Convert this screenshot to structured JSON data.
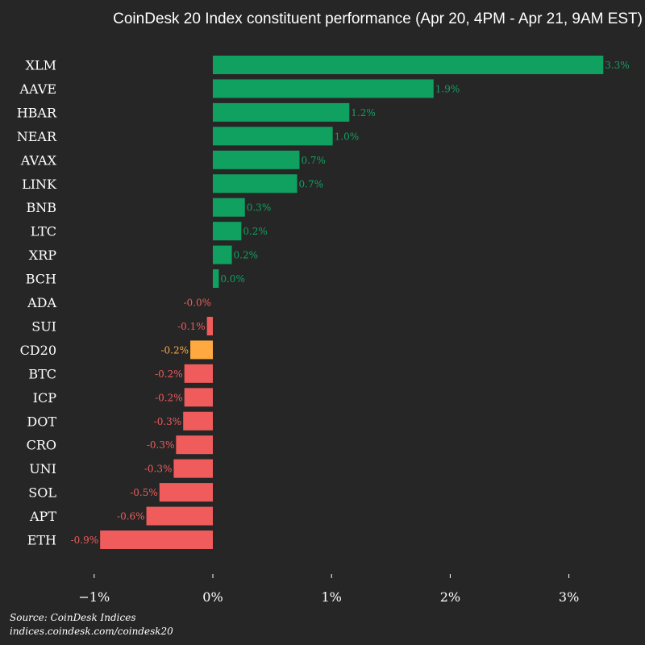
{
  "chart_data": {
    "type": "bar",
    "orientation": "horizontal",
    "title": "CoinDesk 20 Index constituent performance (Apr 20, 4PM - Apr 21, 9AM EST)",
    "xlabel": "",
    "ylabel": "",
    "xlim": [
      -1.2,
      3.6
    ],
    "xticks": [
      -1,
      0,
      1,
      2,
      3
    ],
    "xtick_labels": [
      "−1%",
      "0%",
      "1%",
      "2%",
      "3%"
    ],
    "grid": false,
    "categories": [
      "XLM",
      "AAVE",
      "HBAR",
      "NEAR",
      "AVAX",
      "LINK",
      "BNB",
      "LTC",
      "XRP",
      "BCH",
      "ADA",
      "SUI",
      "CD20",
      "BTC",
      "ICP",
      "DOT",
      "CRO",
      "UNI",
      "SOL",
      "APT",
      "ETH"
    ],
    "values": [
      3.29,
      1.86,
      1.15,
      1.01,
      0.73,
      0.71,
      0.27,
      0.24,
      0.16,
      0.05,
      -0.0,
      -0.05,
      -0.19,
      -0.24,
      -0.24,
      -0.25,
      -0.31,
      -0.33,
      -0.45,
      -0.56,
      -0.95
    ],
    "labels": [
      "3.3%",
      "1.9%",
      "1.2%",
      "1.0%",
      "0.7%",
      "0.7%",
      "0.3%",
      "0.2%",
      "0.2%",
      "0.0%",
      "-0.0%",
      "-0.1%",
      "-0.2%",
      "-0.2%",
      "-0.2%",
      "-0.3%",
      "-0.3%",
      "-0.3%",
      "-0.5%",
      "-0.6%",
      "-0.9%"
    ],
    "highlight_category": "CD20",
    "colors": {
      "positive": "#10a161",
      "negative": "#f05c5c",
      "highlight": "#ffa940",
      "text": "#ffffff",
      "background": "#262626"
    }
  },
  "footer": {
    "source": "Source: CoinDesk Indices",
    "url": "indices.coindesk.com/coindesk20"
  }
}
